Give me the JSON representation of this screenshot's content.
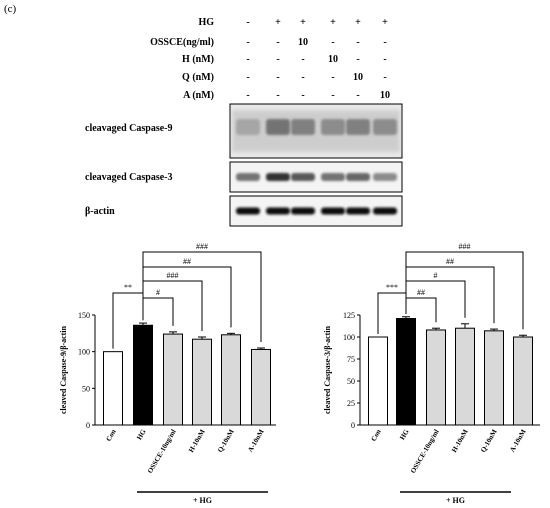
{
  "panel_label": "(c)",
  "treatment_table": {
    "rows": [
      {
        "label": "HG",
        "cells": [
          "-",
          "+",
          "+",
          "+",
          "+",
          "+"
        ]
      },
      {
        "label": "OSSCE(ng/ml)",
        "cells": [
          "-",
          "-",
          "10",
          "-",
          "-",
          "-"
        ]
      },
      {
        "label": "H (nM)",
        "cells": [
          "-",
          "-",
          "-",
          "10",
          "-",
          "-"
        ]
      },
      {
        "label": "Q (nM)",
        "cells": [
          "-",
          "-",
          "-",
          "-",
          "10",
          "-"
        ]
      },
      {
        "label": "A (nM)",
        "cells": [
          "-",
          "-",
          "-",
          "-",
          "-",
          "10"
        ]
      }
    ]
  },
  "blots": [
    {
      "label": "cleavaged Caspase-9"
    },
    {
      "label": "cleavaged Caspase-3"
    },
    {
      "label": "β-actin"
    }
  ],
  "chart_data": [
    {
      "type": "bar",
      "ylabel": "cleaved Caspase-9/β-actin",
      "ylim": [
        0,
        150
      ],
      "yticks": [
        0,
        50,
        100,
        150
      ],
      "categories": [
        "Con",
        "HG",
        "OSSCE-10ng/ml",
        "H-10nM",
        "Q-10nM",
        "A-10nM"
      ],
      "values": [
        100,
        136,
        124,
        117,
        123,
        103
      ],
      "errors": [
        0,
        3,
        3,
        3,
        2,
        2
      ],
      "bar_colors": [
        "#ffffff",
        "#000000",
        "#d9d9d9",
        "#d9d9d9",
        "#d9d9d9",
        "#d9d9d9"
      ],
      "significance": [
        {
          "from": 0,
          "to": 1,
          "label": "**"
        },
        {
          "from": 1,
          "to": 2,
          "label": "#"
        },
        {
          "from": 1,
          "to": 3,
          "label": "###"
        },
        {
          "from": 1,
          "to": 4,
          "label": "##"
        },
        {
          "from": 1,
          "to": 5,
          "label": "###"
        }
      ],
      "group_label": "+ HG"
    },
    {
      "type": "bar",
      "ylabel": "cleaved Caspase-3/β-actin",
      "ylim": [
        0,
        125
      ],
      "yticks": [
        0,
        25,
        50,
        75,
        100,
        125
      ],
      "categories": [
        "Con",
        "HG",
        "OSSCE-10ng/ml",
        "H-10nM",
        "Q-10nM",
        "A-10nM"
      ],
      "values": [
        100,
        121,
        108,
        110,
        107,
        100
      ],
      "errors": [
        0,
        2,
        2,
        5,
        2,
        2
      ],
      "bar_colors": [
        "#ffffff",
        "#000000",
        "#d9d9d9",
        "#d9d9d9",
        "#d9d9d9",
        "#d9d9d9"
      ],
      "significance": [
        {
          "from": 0,
          "to": 1,
          "label": "***"
        },
        {
          "from": 1,
          "to": 2,
          "label": "##"
        },
        {
          "from": 1,
          "to": 3,
          "label": "#"
        },
        {
          "from": 1,
          "to": 4,
          "label": "##"
        },
        {
          "from": 1,
          "to": 5,
          "label": "###"
        }
      ],
      "group_label": "+ HG"
    }
  ]
}
